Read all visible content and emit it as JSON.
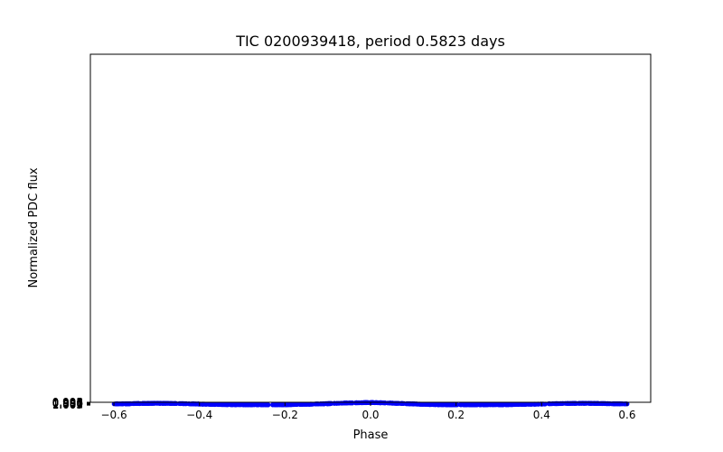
{
  "chart_data": {
    "type": "scatter",
    "title": "TIC 0200939418, period 0.5823 days",
    "xlabel": "Phase",
    "ylabel": "Normalized PDC flux",
    "xlim": [
      -0.655,
      0.655
    ],
    "ylim": [
      0.99495,
      0.00325
    ],
    "x_ticks": [
      -0.6,
      -0.4,
      -0.2,
      0.0,
      0.2,
      0.4,
      0.6
    ],
    "x_tick_labels": [
      "−0.6",
      "−0.4",
      "−0.2",
      "0.0",
      "0.2",
      "0.4",
      "0.6"
    ],
    "y_ticks": [
      0.995,
      0.996,
      0.997,
      0.998,
      0.999,
      1.0,
      1.001,
      1.002,
      1.003
    ],
    "y_tick_labels": [
      "0.995",
      "0.996",
      "0.997",
      "0.998",
      "0.999",
      "1.000",
      "1.001",
      "1.002",
      "1.003"
    ],
    "grid": false,
    "marker_color": "#0000ff",
    "series": [
      {
        "curve_phase": [
          -0.6,
          -0.57,
          -0.55,
          -0.52,
          -0.5,
          -0.48,
          -0.45,
          -0.42,
          -0.4,
          -0.37,
          -0.34,
          -0.31,
          -0.28,
          -0.25,
          -0.22,
          -0.2,
          -0.18,
          -0.16,
          -0.14,
          -0.12,
          -0.1,
          -0.08,
          -0.06,
          -0.04,
          -0.02,
          0.0,
          0.02,
          0.04,
          0.06,
          0.08,
          0.1,
          0.12,
          0.14,
          0.16,
          0.18,
          0.2,
          0.22,
          0.25,
          0.28,
          0.31,
          0.34,
          0.37,
          0.4,
          0.42,
          0.45,
          0.48,
          0.5,
          0.52,
          0.55,
          0.57,
          0.6
        ],
        "curve_flux": [
          0.9997,
          0.99915,
          0.9986,
          0.9981,
          0.9977,
          0.9979,
          0.9985,
          0.9993,
          1.0,
          1.0008,
          1.00145,
          1.0019,
          1.00205,
          1.0021,
          1.002,
          1.0018,
          1.0014,
          1.0009,
          1.0003,
          0.9996,
          0.9988,
          0.998,
          0.99715,
          0.9965,
          0.99605,
          0.9957,
          0.9962,
          0.9969,
          0.9978,
          0.9987,
          0.9996,
          1.0005,
          1.0012,
          1.00165,
          1.00195,
          1.00205,
          1.0021,
          1.00205,
          1.00195,
          1.00175,
          1.0013,
          1.00075,
          1.0001,
          0.9993,
          0.9985,
          0.998,
          0.99775,
          0.99805,
          0.99865,
          0.99915,
          0.9996
        ],
        "n_points": 900,
        "scatter_amplitude": 0.00042
      }
    ]
  }
}
